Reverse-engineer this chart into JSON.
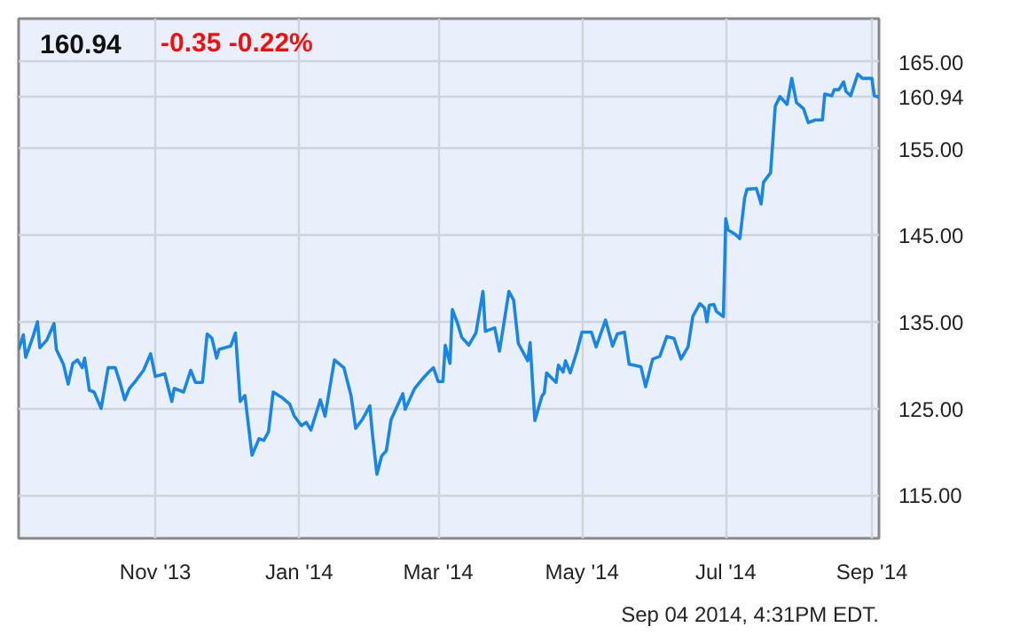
{
  "chart_data": {
    "type": "line",
    "title": "160.94",
    "subtitle": "-0.35  -0.22%",
    "x": [
      "2013-09-04",
      "2013-09-06",
      "2013-09-07",
      "2013-09-10",
      "2013-09-12",
      "2013-09-13",
      "2013-09-16",
      "2013-09-19",
      "2013-09-20",
      "2013-09-23",
      "2013-09-25",
      "2013-09-27",
      "2013-09-29",
      "2013-10-01",
      "2013-10-02",
      "2013-10-04",
      "2013-10-06",
      "2013-10-09",
      "2013-10-12",
      "2013-10-15",
      "2013-10-17",
      "2013-10-19",
      "2013-10-21",
      "2013-10-24",
      "2013-10-27",
      "2013-10-30",
      "2013-11-01",
      "2013-11-05",
      "2013-11-08",
      "2013-11-09",
      "2013-11-13",
      "2013-11-16",
      "2013-11-18",
      "2013-11-21",
      "2013-11-23",
      "2013-11-25",
      "2013-11-27",
      "2013-11-28",
      "2013-12-03",
      "2013-12-05",
      "2013-12-07",
      "2013-12-09",
      "2013-12-12",
      "2013-12-15",
      "2013-12-17",
      "2013-12-19",
      "2013-12-21",
      "2013-12-25",
      "2013-12-28",
      "2013-12-30",
      "2014-01-02",
      "2014-01-04",
      "2014-01-06",
      "2014-01-10",
      "2014-01-12",
      "2014-01-16",
      "2014-01-20",
      "2014-01-23",
      "2014-01-25",
      "2014-01-28",
      "2014-01-31",
      "2014-02-01",
      "2014-02-03",
      "2014-02-05",
      "2014-02-07",
      "2014-02-09",
      "2014-02-11",
      "2014-02-14",
      "2014-02-15",
      "2014-02-19",
      "2014-02-22",
      "2014-02-25",
      "2014-02-27",
      "2014-03-01",
      "2014-03-03",
      "2014-03-04",
      "2014-03-06",
      "2014-03-07",
      "2014-03-09",
      "2014-03-11",
      "2014-03-14",
      "2014-03-17",
      "2014-03-20",
      "2014-03-21",
      "2014-03-25",
      "2014-03-27",
      "2014-03-31",
      "2014-04-02",
      "2014-04-04",
      "2014-04-08",
      "2014-04-09",
      "2014-04-11",
      "2014-04-14",
      "2014-04-15",
      "2014-04-16",
      "2014-04-20",
      "2014-04-21",
      "2014-04-23",
      "2014-04-24",
      "2014-04-26",
      "2014-04-29",
      "2014-05-01",
      "2014-05-05",
      "2014-05-07",
      "2014-05-11",
      "2014-05-14",
      "2014-05-16",
      "2014-05-19",
      "2014-05-21",
      "2014-05-23",
      "2014-05-26",
      "2014-05-28",
      "2014-05-31",
      "2014-06-03",
      "2014-06-06",
      "2014-06-09",
      "2014-06-12",
      "2014-06-15",
      "2014-06-17",
      "2014-06-20",
      "2014-06-22",
      "2014-06-23",
      "2014-06-24",
      "2014-06-26",
      "2014-06-27",
      "2014-06-30",
      "2014-07-01",
      "2014-07-02",
      "2014-07-05",
      "2014-07-07",
      "2014-07-09",
      "2014-07-10",
      "2014-07-14",
      "2014-07-16",
      "2014-07-17",
      "2014-07-20",
      "2014-07-21",
      "2014-07-22",
      "2014-07-24",
      "2014-07-27",
      "2014-07-29",
      "2014-07-31",
      "2014-08-03",
      "2014-08-05",
      "2014-08-08",
      "2014-08-11",
      "2014-08-12",
      "2014-08-15",
      "2014-08-16",
      "2014-08-18",
      "2014-08-20",
      "2014-08-21",
      "2014-08-23",
      "2014-08-26",
      "2014-08-28",
      "2014-09-01",
      "2014-09-02",
      "2014-09-04"
    ],
    "series": [
      {
        "color": "#1a86e2",
        "values": [
          131.8,
          133.5,
          130.9,
          133.2,
          135.0,
          132.0,
          132.9,
          134.8,
          131.8,
          130.1,
          127.8,
          130.2,
          130.6,
          129.7,
          130.8,
          127.1,
          126.9,
          125.0,
          129.7,
          129.7,
          128.0,
          126.0,
          127.3,
          128.3,
          129.4,
          131.3,
          128.7,
          129.0,
          125.8,
          127.3,
          126.9,
          129.4,
          128.0,
          128.0,
          133.6,
          133.1,
          130.8,
          131.8,
          132.2,
          133.7,
          125.8,
          126.5,
          119.6,
          121.5,
          121.3,
          122.3,
          126.9,
          126.2,
          125.5,
          124.1,
          123.0,
          123.4,
          122.5,
          126.0,
          124.1,
          130.6,
          129.7,
          126.5,
          122.7,
          123.8,
          125.3,
          122.3,
          117.4,
          119.5,
          120.1,
          123.7,
          124.9,
          126.7,
          124.9,
          127.3,
          128.3,
          129.2,
          129.7,
          128.1,
          128.1,
          132.3,
          130.2,
          136.4,
          135.0,
          133.2,
          132.3,
          133.7,
          138.5,
          133.9,
          134.3,
          131.6,
          138.5,
          137.5,
          132.5,
          130.5,
          132.6,
          123.6,
          126.4,
          126.8,
          129.1,
          128.0,
          130.0,
          129.2,
          130.5,
          129.1,
          131.7,
          133.8,
          133.8,
          132.1,
          135.2,
          132.2,
          133.6,
          133.8,
          130.1,
          130.0,
          129.8,
          127.5,
          130.7,
          131.0,
          133.3,
          133.1,
          130.7,
          132.1,
          135.6,
          137.1,
          136.6,
          135.0,
          136.9,
          137.0,
          136.2,
          135.6,
          146.9,
          145.6,
          145.1,
          144.6,
          149.3,
          150.3,
          150.4,
          148.6,
          151.1,
          152.2,
          156.0,
          159.9,
          161.0,
          160.1,
          163.1,
          160.3,
          159.6,
          158.0,
          158.3,
          158.3,
          161.3,
          161.1,
          161.8,
          161.8,
          162.7,
          161.6,
          161.1,
          163.6,
          163.1,
          163.1,
          161.1,
          160.94
        ]
      }
    ],
    "xlim": [
      "2013-09-04",
      "2014-09-04"
    ],
    "xticks": [
      {
        "value": "2013-11-01",
        "label": "Nov '13"
      },
      {
        "value": "2014-01-01",
        "label": "Jan '14"
      },
      {
        "value": "2014-03-01",
        "label": "Mar '14"
      },
      {
        "value": "2014-05-01",
        "label": "May '14"
      },
      {
        "value": "2014-07-01",
        "label": "Jul '14"
      },
      {
        "value": "2014-09-01",
        "label": "Sep '14"
      }
    ],
    "ylim": [
      110,
      170
    ],
    "yticks": [
      {
        "value": 115,
        "label": "115.00"
      },
      {
        "value": 125,
        "label": "125.00"
      },
      {
        "value": 135,
        "label": "135.00"
      },
      {
        "value": 145,
        "label": "145.00"
      },
      {
        "value": 155,
        "label": "155.00"
      },
      {
        "value": 160.94,
        "label": "160.94"
      },
      {
        "value": 165,
        "label": "165.00"
      }
    ],
    "grid": true,
    "annotations": [
      "Sep 04 2014, 4:31PM EDT."
    ]
  }
}
